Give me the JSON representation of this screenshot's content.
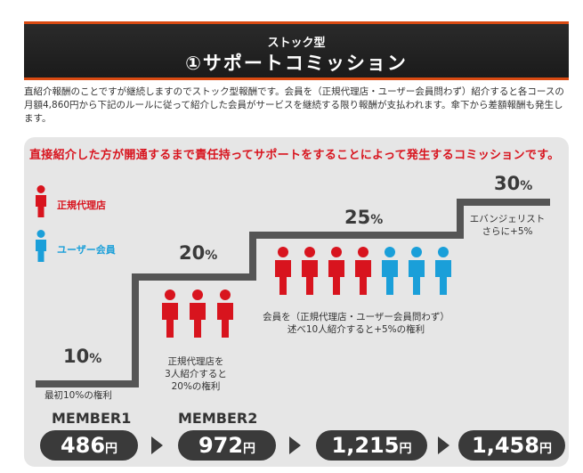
{
  "banner": {
    "subtitle": "ストック型",
    "title": "①サポートコミッション"
  },
  "intro": "直紹介報酬のことですが継続しますのでストック型報酬です。会員を（正規代理店・ユーザー会員問わず）紹介すると各コースの月額4,860円から下記のルールに従って紹介した会員がサービスを継続する限り報酬が支払われます。傘下から差額報酬も発生します。",
  "headline": "直接紹介した方が開通するまで責任持ってサポートをすることによって発生するコミッションです。",
  "legend": [
    {
      "label": "正規代理店",
      "color": "#d8141e"
    },
    {
      "label": "ユーザー会員",
      "color": "#1a9fd9"
    }
  ],
  "steps": [
    {
      "pct": "10",
      "unit": "%",
      "note": "最初10%の権利"
    },
    {
      "pct": "20",
      "unit": "%",
      "note": "正規代理店を\n3人紹介すると\n20%の権利"
    },
    {
      "pct": "25",
      "unit": "%",
      "note": "会員を（正規代理店・ユーザー会員問わず）\n述べ10人紹介すると+5%の権利"
    },
    {
      "pct": "30",
      "unit": "%",
      "note": "エバンジェリスト\nさらに+5%"
    }
  ],
  "members": [
    "MEMBER1",
    "MEMBER2"
  ],
  "amounts": [
    {
      "value": "486",
      "unit": "円"
    },
    {
      "value": "972",
      "unit": "円"
    },
    {
      "value": "1,215",
      "unit": "円"
    },
    {
      "value": "1,458",
      "unit": "円"
    }
  ],
  "colors": {
    "accent": "#d8141e",
    "user": "#1a9fd9",
    "dark": "#3a3a3a",
    "banner_line": "#d94a12"
  }
}
